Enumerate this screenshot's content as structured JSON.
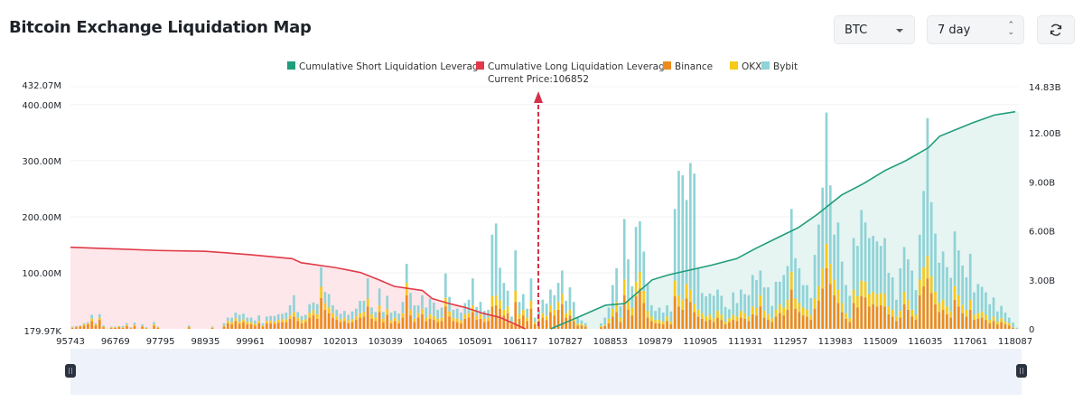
{
  "header": {
    "title": "Bitcoin Exchange Liquidation Map",
    "coin_select": {
      "value": "BTC"
    },
    "range_select": {
      "value": "7 day"
    },
    "refresh_icon": "refresh-icon"
  },
  "colors": {
    "short": "#1f9d7a",
    "long": "#e03a48",
    "binance": "#ee8a1c",
    "okx": "#f7c919",
    "bybit": "#8fd3d6",
    "long_area": "#fde7ea",
    "short_area": "#e6f4f2",
    "slider_bg": "#eef2fb",
    "handle": "#2b3340"
  },
  "chart_data": {
    "type": "bar",
    "title": "Bitcoin Exchange Liquidation Map",
    "legend": [
      "Cumulative Short Liquidation Leverage",
      "Cumulative Long Liquidation Leverage",
      "Binance",
      "OKX",
      "Bybit"
    ],
    "legend_position": "top-center",
    "current_price_label": "Current Price:106852",
    "current_price": 106852,
    "x_tick_labels": [
      "95743",
      "96769",
      "97795",
      "98935",
      "99961",
      "100987",
      "102013",
      "103039",
      "104065",
      "105091",
      "106117",
      "107827",
      "108853",
      "109879",
      "110905",
      "111931",
      "112957",
      "113983",
      "115009",
      "116035",
      "117061",
      "118087"
    ],
    "x_range": [
      95743,
      118087
    ],
    "y_left": {
      "tick_labels": [
        "179.97K",
        "100.00M",
        "200.00M",
        "300.00M",
        "400.00M",
        "432.07M"
      ],
      "range_m": [
        0.18,
        432.07
      ]
    },
    "y_right": {
      "tick_labels": [
        "0",
        "3.00B",
        "6.00B",
        "9.00B",
        "12.00B",
        "14.83B"
      ],
      "range_b": [
        0,
        14.83
      ]
    },
    "series": [
      {
        "name": "Binance",
        "stack": "exchanges",
        "unit": "M",
        "values": [
          2,
          3,
          4,
          6,
          8,
          14,
          6,
          16,
          3,
          0,
          2,
          2,
          3,
          2,
          5,
          1,
          5,
          0,
          4,
          1,
          0,
          6,
          2,
          0,
          0,
          0,
          0,
          0,
          0,
          0,
          3,
          0,
          0,
          0,
          0,
          0,
          2,
          0,
          0,
          4,
          10,
          8,
          14,
          9,
          12,
          8,
          8,
          6,
          10,
          4,
          10,
          10,
          9,
          11,
          12,
          12,
          18,
          22,
          14,
          10,
          12,
          20,
          24,
          18,
          55,
          34,
          28,
          20,
          16,
          12,
          14,
          10,
          12,
          16,
          20,
          22,
          40,
          18,
          14,
          30,
          12,
          25,
          10,
          14,
          10,
          20,
          60,
          24,
          12,
          20,
          26,
          14,
          18,
          16,
          12,
          14,
          40,
          22,
          14,
          12,
          10,
          18,
          20,
          30,
          16,
          18,
          12,
          14,
          40,
          42,
          36,
          24,
          28,
          8,
          48,
          18,
          24,
          14,
          36,
          8,
          14,
          20,
          16,
          30,
          24,
          34,
          44,
          20,
          24,
          14,
          6,
          6,
          4,
          0,
          0,
          0,
          3,
          5,
          10,
          22,
          30,
          12,
          60,
          34,
          24,
          58,
          72,
          46,
          20,
          14,
          10,
          10,
          8,
          14,
          8,
          58,
          40,
          34,
          54,
          48,
          30,
          22,
          18,
          14,
          16,
          12,
          20,
          16,
          8,
          12,
          16,
          14,
          20,
          18,
          14,
          26,
          24,
          40,
          20,
          16,
          12,
          22,
          28,
          24,
          34,
          70,
          36,
          30,
          24,
          22,
          16,
          36,
          50,
          72,
          108,
          80,
          60,
          46,
          30,
          18,
          12,
          46,
          38,
          58,
          56,
          40,
          44,
          40,
          42,
          40,
          26,
          22,
          14,
          20,
          44,
          34,
          22,
          16,
          60,
          76,
          90,
          64,
          44,
          30,
          34,
          26,
          20,
          52,
          40,
          28,
          22,
          34,
          16,
          18,
          20,
          16,
          10,
          14,
          8,
          12,
          8,
          6,
          2,
          0
        ]
      },
      {
        "name": "OKX",
        "stack": "exchanges",
        "unit": "M",
        "values": [
          1,
          1,
          1,
          2,
          2,
          4,
          2,
          4,
          1,
          0,
          1,
          1,
          1,
          1,
          2,
          1,
          2,
          0,
          1,
          1,
          0,
          2,
          1,
          0,
          0,
          0,
          0,
          0,
          0,
          0,
          1,
          0,
          0,
          0,
          0,
          0,
          1,
          0,
          0,
          2,
          4,
          4,
          5,
          4,
          5,
          4,
          4,
          3,
          4,
          2,
          4,
          5,
          4,
          5,
          5,
          5,
          6,
          8,
          6,
          5,
          5,
          8,
          9,
          8,
          20,
          12,
          10,
          8,
          6,
          5,
          6,
          5,
          5,
          6,
          8,
          8,
          14,
          8,
          6,
          12,
          6,
          10,
          5,
          6,
          5,
          8,
          22,
          10,
          6,
          8,
          10,
          6,
          8,
          7,
          6,
          6,
          15,
          9,
          6,
          6,
          5,
          8,
          8,
          12,
          7,
          8,
          6,
          6,
          18,
          18,
          15,
          10,
          12,
          4,
          20,
          8,
          10,
          6,
          14,
          4,
          6,
          8,
          7,
          12,
          10,
          14,
          18,
          8,
          10,
          6,
          3,
          3,
          2,
          0,
          0,
          0,
          2,
          3,
          8,
          14,
          18,
          8,
          28,
          18,
          14,
          26,
          30,
          22,
          12,
          8,
          6,
          6,
          5,
          8,
          5,
          28,
          20,
          18,
          26,
          22,
          15,
          12,
          10,
          8,
          9,
          7,
          12,
          9,
          5,
          7,
          9,
          8,
          12,
          10,
          8,
          14,
          13,
          20,
          12,
          10,
          7,
          12,
          16,
          14,
          18,
          32,
          18,
          16,
          14,
          12,
          9,
          18,
          26,
          36,
          44,
          36,
          28,
          24,
          16,
          10,
          7,
          24,
          20,
          28,
          28,
          22,
          22,
          22,
          22,
          22,
          14,
          12,
          8,
          12,
          22,
          18,
          12,
          9,
          28,
          34,
          40,
          30,
          22,
          16,
          18,
          14,
          11,
          24,
          20,
          15,
          12,
          18,
          9,
          10,
          11,
          9,
          6,
          8,
          5,
          7,
          5,
          4,
          1,
          0
        ]
      },
      {
        "name": "Bybit",
        "stack": "exchanges",
        "unit": "M",
        "values": [
          1,
          1,
          1,
          2,
          2,
          7,
          2,
          6,
          2,
          0,
          1,
          1,
          1,
          2,
          3,
          1,
          4,
          0,
          3,
          1,
          0,
          4,
          1,
          0,
          0,
          0,
          0,
          0,
          0,
          0,
          2,
          0,
          0,
          0,
          0,
          0,
          1,
          0,
          0,
          4,
          6,
          8,
          10,
          12,
          10,
          8,
          8,
          6,
          10,
          4,
          8,
          8,
          10,
          10,
          10,
          12,
          18,
          30,
          10,
          8,
          8,
          16,
          14,
          18,
          35,
          20,
          24,
          14,
          12,
          10,
          12,
          10,
          14,
          14,
          22,
          20,
          36,
          12,
          10,
          30,
          12,
          24,
          14,
          12,
          12,
          20,
          34,
          30,
          24,
          14,
          24,
          18,
          28,
          24,
          16,
          18,
          44,
          26,
          14,
          18,
          14,
          20,
          24,
          48,
          16,
          22,
          14,
          14,
          110,
          128,
          58,
          48,
          28,
          10,
          72,
          22,
          28,
          16,
          40,
          8,
          14,
          24,
          22,
          28,
          26,
          34,
          42,
          22,
          40,
          28,
          12,
          6,
          4,
          0,
          0,
          0,
          5,
          12,
          20,
          42,
          60,
          20,
          108,
          72,
          38,
          98,
          90,
          70,
          48,
          20,
          16,
          22,
          16,
          20,
          18,
          128,
          222,
          222,
          150,
          226,
          232,
          74,
          36,
          36,
          38,
          40,
          38,
          34,
          26,
          16,
          40,
          24,
          38,
          34,
          38,
          56,
          50,
          44,
          42,
          48,
          22,
          50,
          40,
          58,
          60,
          112,
          72,
          62,
          40,
          44,
          30,
          78,
          110,
          144,
          234,
          140,
          80,
          120,
          74,
          50,
          40,
          92,
          90,
          126,
          106,
          100,
          100,
          94,
          84,
          100,
          60,
          58,
          30,
          76,
          80,
          72,
          70,
          44,
          80,
          136,
          246,
          132,
          104,
          72,
          86,
          70,
          60,
          98,
          80,
          70,
          58,
          82,
          40,
          52,
          44,
          40,
          28,
          34,
          18,
          22,
          16,
          10,
          8,
          2
        ]
      },
      {
        "name": "Cumulative Long Liquidation Leverage",
        "axis": "right",
        "unit": "B",
        "x": [
          95743,
          97795,
          98935,
          99961,
          100987,
          101200,
          102013,
          102600,
          103039,
          103400,
          104065,
          104300,
          104700,
          105091,
          105500,
          105900,
          106117,
          106500
        ],
        "values": [
          5.0,
          4.8,
          4.75,
          4.55,
          4.3,
          4.05,
          3.75,
          3.45,
          3.0,
          2.6,
          2.35,
          1.85,
          1.55,
          1.3,
          0.95,
          0.7,
          0.45,
          0.0
        ]
      },
      {
        "name": "Cumulative Short Liquidation Leverage",
        "axis": "right",
        "unit": "B",
        "x": [
          107100,
          107827,
          108400,
          108853,
          109100,
          109500,
          109879,
          110905,
          111500,
          111931,
          112400,
          112957,
          113400,
          113983,
          114500,
          115009,
          115500,
          116035,
          116300,
          117061,
          117600,
          118087
        ],
        "values": [
          0.0,
          0.8,
          1.45,
          1.55,
          2.1,
          3.0,
          3.3,
          3.9,
          4.3,
          4.9,
          5.5,
          6.2,
          7.0,
          8.2,
          8.9,
          9.7,
          10.3,
          11.1,
          11.8,
          12.6,
          13.1,
          13.3
        ]
      }
    ]
  }
}
